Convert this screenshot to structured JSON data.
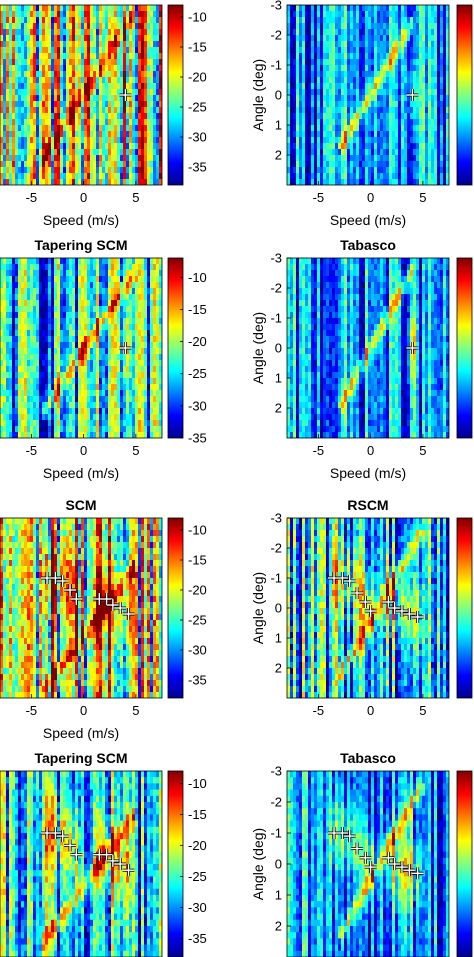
{
  "colormap": [
    "#00008f",
    "#0000ff",
    "#0080ff",
    "#00ffff",
    "#80ff80",
    "#ffff00",
    "#ff8000",
    "#ff0000",
    "#800000"
  ],
  "marker_color": "#ffffff",
  "chart_data": [
    {
      "type": "heatmap",
      "title": "",
      "xlabel": "Speed (m/s)",
      "ylabel": "",
      "xlim": [
        -8,
        7.5
      ],
      "ylim": [
        -3,
        3
      ],
      "xticks": [
        -5,
        0,
        5
      ],
      "yticks": [],
      "clim": [
        -38,
        -8
      ],
      "cbar_ticks": [
        -10,
        -15,
        -20,
        -25,
        -30,
        -35
      ],
      "ridge": {
        "x": [
          -4,
          5
        ],
        "y": [
          2.2,
          -2.8
        ]
      },
      "noise": "high",
      "markers": [
        {
          "x": 4,
          "y": 0
        }
      ]
    },
    {
      "type": "heatmap",
      "title": "",
      "xlabel": "Speed (m/s)",
      "ylabel": "Angle (deg)",
      "xlim": [
        -8,
        7.5
      ],
      "ylim": [
        -3,
        3
      ],
      "xticks": [
        -5,
        0,
        5
      ],
      "yticks": [
        -3,
        -2,
        -1,
        0,
        1,
        2
      ],
      "clim": [
        -38,
        -8
      ],
      "cbar_ticks": [],
      "ridge": {
        "x": [
          -3,
          4
        ],
        "y": [
          1.8,
          -2.4
        ]
      },
      "noise": "low",
      "markers": [
        {
          "x": 4,
          "y": 0
        }
      ]
    },
    {
      "type": "heatmap",
      "title": "Tapering SCM",
      "xlabel": "Speed (m/s)",
      "ylabel": "",
      "xlim": [
        -8,
        7.5
      ],
      "ylim": [
        -3,
        3
      ],
      "xticks": [
        -5,
        0,
        5
      ],
      "yticks": [],
      "clim": [
        -35,
        -7
      ],
      "cbar_ticks": [
        -10,
        -15,
        -20,
        -25,
        -30,
        -35
      ],
      "ridge": {
        "x": [
          -4,
          5
        ],
        "y": [
          2.2,
          -2.6
        ]
      },
      "noise": "medium",
      "markers": [
        {
          "x": 4,
          "y": 0
        }
      ]
    },
    {
      "type": "heatmap",
      "title": "Tabasco",
      "xlabel": "Speed (m/s)",
      "ylabel": "Angle (deg)",
      "xlim": [
        -8,
        7.5
      ],
      "ylim": [
        -3,
        3
      ],
      "xticks": [
        -5,
        0,
        5
      ],
      "yticks": [
        -3,
        -2,
        -1,
        0,
        1,
        2
      ],
      "clim": [
        -35,
        -7
      ],
      "cbar_ticks": [],
      "ridge": {
        "x": [
          -3,
          4
        ],
        "y": [
          2.0,
          -2.6
        ]
      },
      "noise": "low",
      "markers": [
        {
          "x": 4,
          "y": 0
        }
      ]
    },
    {
      "type": "heatmap",
      "title": "SCM",
      "xlabel": "Speed (m/s)",
      "ylabel": "",
      "xlim": [
        -8,
        7.5
      ],
      "ylim": [
        -3,
        3
      ],
      "xticks": [
        -5,
        0,
        5
      ],
      "yticks": [],
      "clim": [
        -38,
        -8
      ],
      "cbar_ticks": [
        -10,
        -15,
        -20,
        -25,
        -30,
        -35
      ],
      "ridge": {
        "x": [
          -4,
          5
        ],
        "y": [
          2.8,
          -1.4
        ]
      },
      "noise": "high",
      "markers": [
        {
          "x": -3.5,
          "y": -1
        },
        {
          "x": -2.7,
          "y": -1
        },
        {
          "x": -2,
          "y": -0.9
        },
        {
          "x": -1.3,
          "y": -0.6
        },
        {
          "x": -0.7,
          "y": -0.3
        },
        {
          "x": 1.5,
          "y": -0.3
        },
        {
          "x": 2.2,
          "y": -0.3
        },
        {
          "x": 2.8,
          "y": -0.1
        },
        {
          "x": 3.5,
          "y": 0
        },
        {
          "x": 4.3,
          "y": 0.2
        }
      ]
    },
    {
      "type": "heatmap",
      "title": "RSCM",
      "xlabel": "",
      "ylabel": "Angle (deg)",
      "xlim": [
        -8,
        7.5
      ],
      "ylim": [
        -3,
        3
      ],
      "xticks": [
        -5,
        0,
        5
      ],
      "yticks": [
        -3,
        -2,
        -1,
        0,
        1,
        2
      ],
      "clim": [
        -38,
        -8
      ],
      "cbar_ticks": [],
      "ridge": {
        "x": [
          -3,
          5
        ],
        "y": [
          2.3,
          -2.6
        ]
      },
      "noise": "medium",
      "markers": [
        {
          "x": -3.5,
          "y": -1
        },
        {
          "x": -2.7,
          "y": -1
        },
        {
          "x": -2,
          "y": -0.9
        },
        {
          "x": -1.3,
          "y": -0.5
        },
        {
          "x": -0.5,
          "y": -0.2
        },
        {
          "x": 0,
          "y": 0.1
        },
        {
          "x": 1.7,
          "y": -0.2
        },
        {
          "x": 2.3,
          "y": 0
        },
        {
          "x": 3,
          "y": 0.1
        },
        {
          "x": 3.7,
          "y": 0.2
        },
        {
          "x": 4.5,
          "y": 0.3
        }
      ]
    },
    {
      "type": "heatmap",
      "title": "Tapering SCM",
      "xlabel": "",
      "ylabel": "",
      "xlim": [
        -8,
        7.5
      ],
      "ylim": [
        -3,
        3
      ],
      "xticks": [],
      "yticks": [],
      "clim": [
        -38,
        -8
      ],
      "cbar_ticks": [
        -10,
        -15,
        -20,
        -25,
        -30,
        -35
      ],
      "ridge": {
        "x": [
          -4,
          5
        ],
        "y": [
          2.6,
          -1.6
        ]
      },
      "noise": "medium",
      "markers": [
        {
          "x": -3.5,
          "y": -1
        },
        {
          "x": -2.7,
          "y": -1
        },
        {
          "x": -2,
          "y": -0.9
        },
        {
          "x": -1.3,
          "y": -0.6
        },
        {
          "x": -0.7,
          "y": -0.3
        },
        {
          "x": 1.5,
          "y": -0.3
        },
        {
          "x": 2.2,
          "y": -0.3
        },
        {
          "x": 2.8,
          "y": -0.1
        },
        {
          "x": 3.5,
          "y": 0
        },
        {
          "x": 4.3,
          "y": 0.2
        }
      ]
    },
    {
      "type": "heatmap",
      "title": "Tabasco",
      "xlabel": "",
      "ylabel": "Angle (deg)",
      "xlim": [
        -8,
        7.5
      ],
      "ylim": [
        -3,
        3
      ],
      "xticks": [],
      "yticks": [
        -3,
        -2,
        -1,
        0,
        1,
        2
      ],
      "clim": [
        -38,
        -8
      ],
      "cbar_ticks": [],
      "ridge": {
        "x": [
          -3,
          5
        ],
        "y": [
          2.4,
          -2.6
        ]
      },
      "noise": "low",
      "markers": [
        {
          "x": -3.5,
          "y": -1
        },
        {
          "x": -2.7,
          "y": -1
        },
        {
          "x": -2,
          "y": -0.9
        },
        {
          "x": -1.3,
          "y": -0.5
        },
        {
          "x": -0.5,
          "y": -0.2
        },
        {
          "x": 0,
          "y": 0.1
        },
        {
          "x": 1.7,
          "y": -0.2
        },
        {
          "x": 2.3,
          "y": 0
        },
        {
          "x": 3,
          "y": 0.1
        },
        {
          "x": 3.7,
          "y": 0.2
        },
        {
          "x": 4.5,
          "y": 0.3
        }
      ]
    }
  ]
}
